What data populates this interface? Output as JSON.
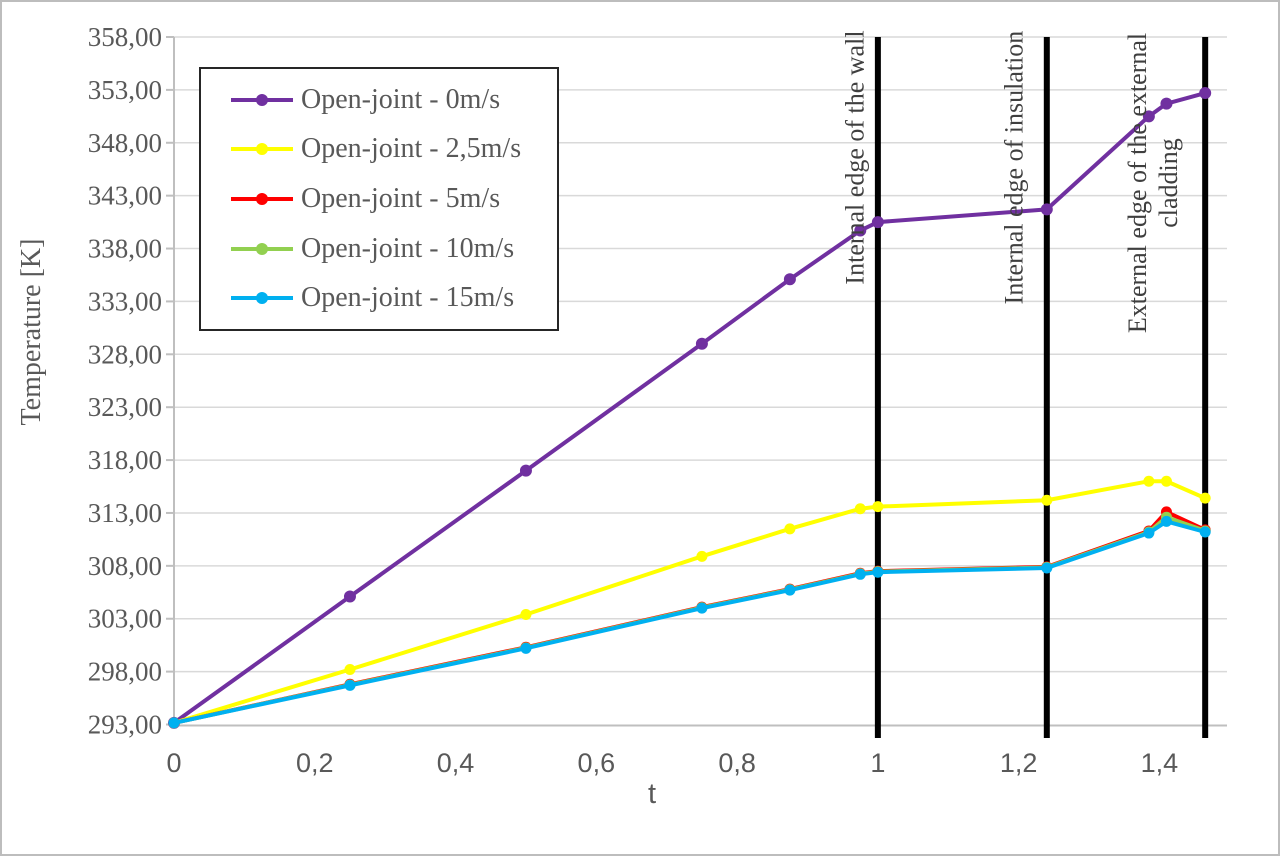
{
  "frame": {
    "background": "#ffffff",
    "outer_border": "#bdbdbd",
    "gridline_color": "#d9d9d9",
    "axis_color": "#bfbfbf",
    "tick_text_color": "#595959",
    "annotation_text_color": "#3f3f3f",
    "annotation_line_color": "#000000",
    "legend_border_color": "#262626"
  },
  "chart_data": {
    "type": "line",
    "title": "",
    "xlabel": "t",
    "ylabel": "Temperature [K]",
    "xlim": [
      0,
      1.496
    ],
    "ylim": [
      293,
      358
    ],
    "grid": true,
    "legend_position": "top-left",
    "x_tick_values": [
      0,
      0.2,
      0.4,
      0.6,
      0.8,
      1,
      1.2,
      1.4
    ],
    "x_tick_labels": [
      "0",
      "0,2",
      "0,4",
      "0,6",
      "0,8",
      "1",
      "1,2",
      "1,4"
    ],
    "y_tick_values": [
      293,
      298,
      303,
      308,
      313,
      318,
      323,
      328,
      333,
      338,
      343,
      348,
      353,
      358
    ],
    "y_tick_labels": [
      "293,00",
      "298,00",
      "303,00",
      "308,00",
      "313,00",
      "318,00",
      "323,00",
      "328,00",
      "333,00",
      "338,00",
      "343,00",
      "348,00",
      "353,00",
      "358,00"
    ],
    "x": [
      0,
      0.25,
      0.5,
      0.75,
      0.875,
      0.975,
      1.0,
      1.24,
      1.385,
      1.41,
      1.465
    ],
    "series": [
      {
        "name": "Open-joint - 0m/s",
        "color": "#7030A0",
        "values": [
          293.15,
          305.1,
          317.0,
          329.0,
          335.1,
          339.7,
          340.5,
          341.7,
          350.5,
          351.7,
          352.7
        ]
      },
      {
        "name": "Open-joint - 2,5m/s",
        "color": "#FFFF00",
        "values": [
          293.15,
          298.2,
          303.4,
          308.9,
          311.5,
          313.4,
          313.6,
          314.2,
          316.0,
          316.0,
          314.4
        ]
      },
      {
        "name": "Open-joint - 5m/s",
        "color": "#FF0000",
        "values": [
          293.15,
          296.8,
          300.3,
          304.1,
          305.8,
          307.3,
          307.5,
          307.9,
          311.3,
          313.1,
          311.4
        ]
      },
      {
        "name": "Open-joint - 10m/s",
        "color": "#92D050",
        "values": [
          293.15,
          296.75,
          300.25,
          304.05,
          305.75,
          307.25,
          307.45,
          307.85,
          311.2,
          312.6,
          311.3
        ]
      },
      {
        "name": "Open-joint - 15m/s",
        "color": "#00B0F0",
        "values": [
          293.15,
          296.7,
          300.2,
          304.0,
          305.7,
          307.2,
          307.4,
          307.8,
          311.1,
          312.2,
          311.2
        ]
      }
    ],
    "annotations": [
      {
        "label": "Internal edge of the wall",
        "x": 1.0
      },
      {
        "label": "Internal edge of insulation",
        "x": 1.24
      },
      {
        "label": "External edge of the external\ncladding",
        "x": 1.465
      }
    ]
  }
}
